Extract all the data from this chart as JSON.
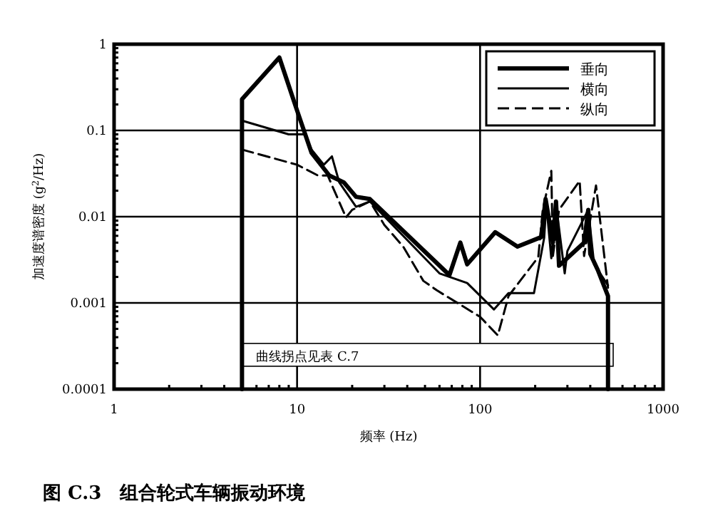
{
  "chart_data": {
    "type": "line",
    "title": "图 C.3　组合轮式车辆振动环境",
    "xlabel": "频率 (Hz)",
    "ylabel": "加速度谱密度 (g$^{2}$/Hz)",
    "log": "xy",
    "xlim": [
      1,
      1000
    ],
    "ylim": [
      0.0001,
      1
    ],
    "xticks": [
      1,
      10,
      100,
      1000
    ],
    "yticks": [
      0.0001,
      0.001,
      0.01,
      0.1,
      1
    ],
    "grid": true,
    "legend": "top right",
    "annotations": [
      {
        "text": "曲线拐点见表 C.7",
        "x": 5,
        "y": 0.00025
      }
    ],
    "series": [
      {
        "name": "垂向",
        "color": "#000000",
        "line_style": "solid",
        "x": [
          5,
          5,
          8,
          10,
          12,
          15,
          18,
          21,
          25,
          68,
          78,
          85,
          121,
          160,
          216,
          228,
          250,
          260,
          270,
          370,
          390,
          400,
          440,
          500,
          500
        ],
        "values": [
          0.0001,
          0.23,
          0.7,
          0.17,
          0.055,
          0.03,
          0.025,
          0.017,
          0.016,
          0.0021,
          0.005,
          0.0028,
          0.0066,
          0.0045,
          0.0058,
          0.016,
          0.005,
          0.015,
          0.0027,
          0.005,
          0.012,
          0.0037,
          0.0024,
          0.0012,
          0.0001
        ]
      },
      {
        "name": "横向",
        "color": "#000000",
        "line_style": "solid",
        "x": [
          5,
          9,
          11,
          12,
          14,
          15.5,
          17,
          21,
          25,
          60,
          85,
          119,
          143,
          165,
          197,
          224,
          230,
          245,
          260,
          290,
          300,
          390,
          420,
          500
        ],
        "values": [
          0.13,
          0.09,
          0.09,
          0.06,
          0.04,
          0.05,
          0.025,
          0.013,
          0.015,
          0.0022,
          0.0017,
          0.00084,
          0.0013,
          0.0013,
          0.0013,
          0.0057,
          0.014,
          0.0033,
          0.014,
          0.0022,
          0.004,
          0.012,
          0.0028,
          0.0016
        ]
      },
      {
        "name": "纵向",
        "color": "#000000",
        "line_style": "dashed",
        "x": [
          5,
          10,
          13,
          14.7,
          18.5,
          20,
          25,
          30,
          38,
          49,
          58,
          100,
          125,
          143,
          208,
          220,
          245,
          250,
          270,
          350,
          370,
          430,
          500
        ],
        "values": [
          0.06,
          0.04,
          0.03,
          0.03,
          0.0098,
          0.012,
          0.015,
          0.008,
          0.0045,
          0.0018,
          0.0014,
          0.00069,
          0.00042,
          0.0012,
          0.0034,
          0.012,
          0.034,
          0.0035,
          0.012,
          0.026,
          0.0035,
          0.023,
          0.0015
        ]
      }
    ]
  }
}
